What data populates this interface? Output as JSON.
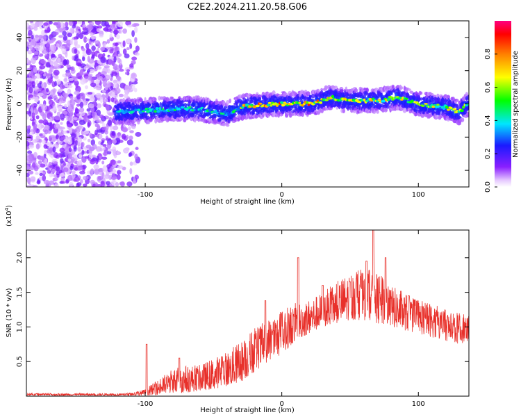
{
  "title": "C2E2.2024.211.20.58.G06",
  "chart_data": [
    {
      "type": "heatmap",
      "name": "spectrogram",
      "xlabel": "Height of straight line (km)",
      "ylabel": "Frequency (Hz)",
      "xlim": [
        -187,
        137
      ],
      "ylim": [
        -50,
        50
      ],
      "x_ticks": [
        -100,
        0,
        100
      ],
      "x_tick_labels": [
        "-100",
        "0",
        "100"
      ],
      "y_ticks": [
        -40,
        -20,
        0,
        20,
        40
      ],
      "y_tick_labels": [
        "-40",
        "-20",
        "0",
        "20",
        "40"
      ],
      "noise_region_x": [
        -187,
        -105
      ],
      "signal_track": {
        "x": [
          -120,
          -100,
          -80,
          -60,
          -40,
          -30,
          -20,
          0,
          20,
          30,
          35,
          50,
          70,
          85,
          100,
          120,
          130,
          137
        ],
        "y": [
          -5,
          -4,
          -3,
          -3,
          -6,
          -2,
          -1,
          0,
          0,
          2,
          4,
          2,
          2,
          4,
          0,
          -2,
          -5,
          1
        ]
      },
      "colorbar": {
        "label": "Normalized spectral amplitude",
        "range": [
          0,
          1
        ],
        "ticks": [
          0.0,
          0.2,
          0.4,
          0.6,
          0.8
        ],
        "tick_labels": [
          "0.0",
          "0.2",
          "0.4",
          "0.6",
          "0.8"
        ]
      }
    },
    {
      "type": "line",
      "name": "snr",
      "xlabel": "Height of straight line (km)",
      "ylabel": "SNR (10 * v/v)",
      "scale_label": "(x10",
      "scale_exp": "4",
      "scale_close": ")",
      "xlim": [
        -187,
        137
      ],
      "ylim": [
        0,
        2.4
      ],
      "x_ticks": [
        -100,
        0,
        100
      ],
      "x_tick_labels": [
        "-100",
        "0",
        "100"
      ],
      "y_ticks": [
        0.5,
        1.0,
        1.5,
        2.0
      ],
      "y_tick_labels": [
        "0.5",
        "1.0",
        "1.5",
        "2.0"
      ],
      "series": [
        {
          "name": "SNR",
          "color": "#e8302a",
          "envelope_x": [
            -187,
            -120,
            -110,
            -100,
            -90,
            -80,
            -70,
            -60,
            -50,
            -40,
            -30,
            -20,
            -10,
            0,
            10,
            20,
            30,
            40,
            50,
            60,
            70,
            80,
            90,
            100,
            110,
            120,
            130,
            137
          ],
          "envelope_low": [
            0.01,
            0.01,
            0.01,
            0.01,
            0.02,
            0.05,
            0.05,
            0.08,
            0.1,
            0.15,
            0.2,
            0.35,
            0.5,
            0.6,
            0.8,
            0.9,
            1.0,
            1.05,
            1.1,
            1.1,
            1.05,
            1.0,
            0.95,
            0.9,
            0.85,
            0.8,
            0.75,
            0.8
          ],
          "envelope_high": [
            0.04,
            0.04,
            0.05,
            0.1,
            0.25,
            0.4,
            0.45,
            0.45,
            0.55,
            0.65,
            0.8,
            1.0,
            1.1,
            1.25,
            1.35,
            1.4,
            1.5,
            1.65,
            1.8,
            1.85,
            1.8,
            1.6,
            1.5,
            1.4,
            1.35,
            1.25,
            1.2,
            1.25
          ],
          "peaks": [
            [
              -99,
              0.75
            ],
            [
              -75,
              0.55
            ],
            [
              -12,
              1.38
            ],
            [
              12,
              2.0
            ],
            [
              30,
              1.6
            ],
            [
              50,
              1.65
            ],
            [
              62,
              1.95
            ],
            [
              67,
              2.4
            ],
            [
              76,
              2.0
            ],
            [
              93,
              1.45
            ]
          ]
        }
      ]
    }
  ]
}
